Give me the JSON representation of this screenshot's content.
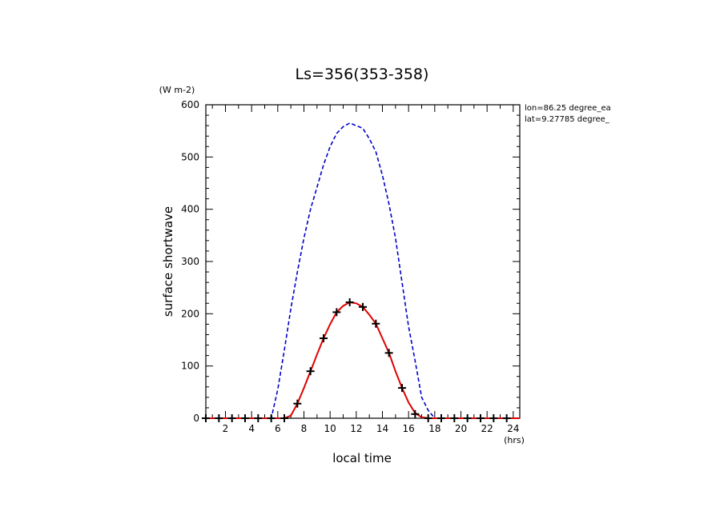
{
  "chart_data": {
    "type": "line",
    "title": "Ls=356(353-358)",
    "xlabel": "local time",
    "ylabel": "surface shortwave",
    "x_unit": "(hrs)",
    "y_unit": "(W m-2)",
    "xlim": [
      0.5,
      24.5
    ],
    "ylim": [
      0,
      600
    ],
    "x_ticks": [
      2,
      4,
      6,
      8,
      10,
      12,
      14,
      16,
      18,
      20,
      22,
      24
    ],
    "y_ticks": [
      0,
      100,
      200,
      300,
      400,
      500,
      600
    ],
    "annotations": [
      "lon=86.25 degree_ea",
      "lat=9.27785 degree_"
    ],
    "grid": false,
    "series": [
      {
        "color": "#0000cc",
        "style": "dashed",
        "x": [
          0.5,
          1.5,
          2.5,
          3.5,
          4.5,
          5.5,
          6,
          6.5,
          7,
          7.5,
          8,
          8.5,
          9,
          9.5,
          10,
          10.5,
          11,
          11.5,
          12,
          12.5,
          13,
          13.5,
          14,
          14.5,
          15,
          15.5,
          16,
          16.5,
          17,
          17.5,
          18,
          18.5,
          19,
          20,
          21,
          22,
          23,
          24,
          24.5
        ],
        "values": [
          0,
          0,
          0,
          0,
          0,
          0,
          55,
          130,
          210,
          280,
          345,
          400,
          442,
          485,
          520,
          545,
          558,
          565,
          560,
          555,
          535,
          510,
          465,
          410,
          345,
          260,
          175,
          110,
          40,
          15,
          0,
          0,
          0,
          0,
          0,
          0,
          0,
          0,
          0
        ]
      },
      {
        "color": "#dd0000",
        "style": "solid",
        "x": [
          0.5,
          1.5,
          2.5,
          3.5,
          4.5,
          5.5,
          6.5,
          7,
          7.5,
          8,
          8.5,
          9,
          9.5,
          10,
          10.5,
          11,
          11.5,
          12,
          12.5,
          13,
          13.5,
          14,
          14.5,
          15,
          15.5,
          16,
          16.5,
          17,
          17.5,
          18,
          19,
          20,
          21,
          22,
          23,
          24,
          24.5
        ],
        "values": [
          0,
          0,
          0,
          0,
          0,
          0,
          0,
          5,
          28,
          58,
          90,
          122,
          153,
          180,
          203,
          215,
          222,
          220,
          213,
          198,
          181,
          153,
          125,
          90,
          58,
          30,
          10,
          2,
          0,
          0,
          0,
          0,
          0,
          0,
          0,
          0,
          0
        ]
      },
      {
        "color": "#000000",
        "style": "markers",
        "marker": "plus",
        "x": [
          0.5,
          1.5,
          2.5,
          3.5,
          4.5,
          5.5,
          6.5,
          7.5,
          8.5,
          9.5,
          10.5,
          11.5,
          12.5,
          13.5,
          14.5,
          15.5,
          16.5,
          17.5,
          18.5,
          19.5,
          20.5,
          21.5,
          22.5,
          23.5
        ],
        "values": [
          0,
          0,
          0,
          0,
          0,
          0,
          0,
          28,
          90,
          153,
          203,
          222,
          213,
          181,
          125,
          58,
          8,
          0,
          0,
          0,
          0,
          0,
          0,
          0
        ]
      }
    ]
  }
}
